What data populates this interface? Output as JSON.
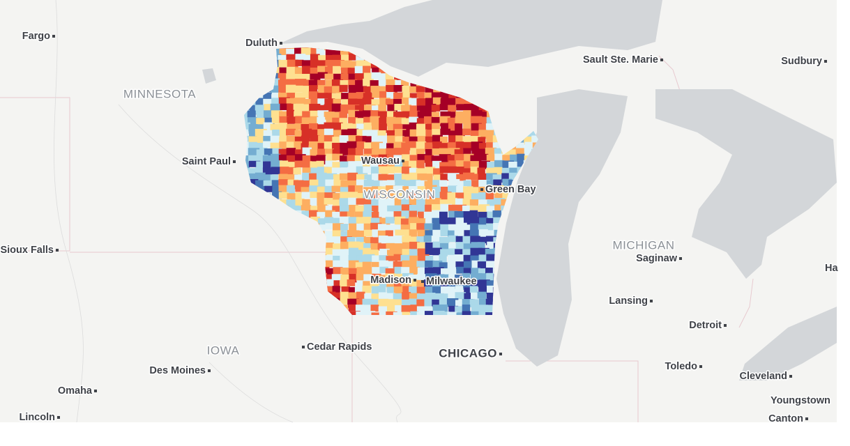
{
  "labels": {
    "cities": [
      "Fargo",
      "Duluth",
      "Saint Paul",
      "Sioux Falls",
      "Des Moines",
      "Omaha",
      "Lincoln",
      "Cedar Rapids",
      "CHICAGO",
      "Madison",
      "Milwaukee",
      "Wausau",
      "Green Bay",
      "Sault Ste. Marie",
      "Sudbury",
      "Saginaw",
      "Lansing",
      "Detroit",
      "Toledo",
      "Cleveland",
      "Youngstown",
      "Canton",
      "Ha"
    ],
    "regions": [
      "MINNESOTA",
      "IOWA",
      "WISCONSIN",
      "MICHIGAN"
    ]
  }
}
